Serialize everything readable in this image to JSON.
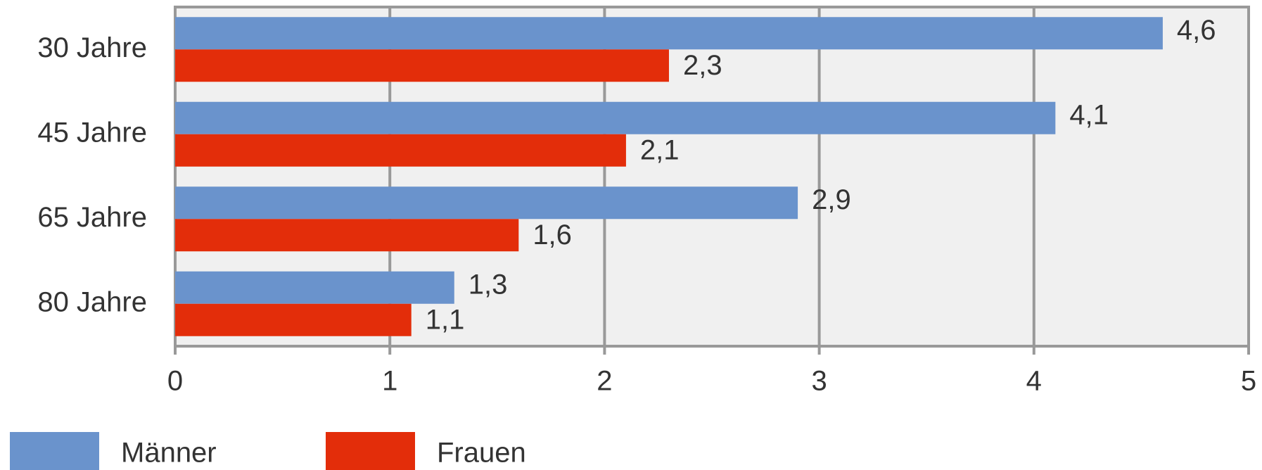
{
  "chart_data": {
    "type": "bar",
    "orientation": "horizontal",
    "categories": [
      "30 Jahre",
      "45 Jahre",
      "65 Jahre",
      "80 Jahre"
    ],
    "series": [
      {
        "name": "Männer",
        "color": "#6a93cc",
        "values": [
          4.6,
          4.1,
          2.9,
          1.3
        ],
        "value_labels": [
          "4,6",
          "4,1",
          "2,9",
          "1,3"
        ]
      },
      {
        "name": "Frauen",
        "color": "#e32d0a",
        "values": [
          2.3,
          2.1,
          1.6,
          1.1
        ],
        "value_labels": [
          "2,3",
          "2,1",
          "1,6",
          "1,1"
        ]
      }
    ],
    "xlim": [
      0,
      5
    ],
    "xticks": [
      0,
      1,
      2,
      3,
      4,
      5
    ],
    "grid": true,
    "legend": "bottom-left"
  }
}
